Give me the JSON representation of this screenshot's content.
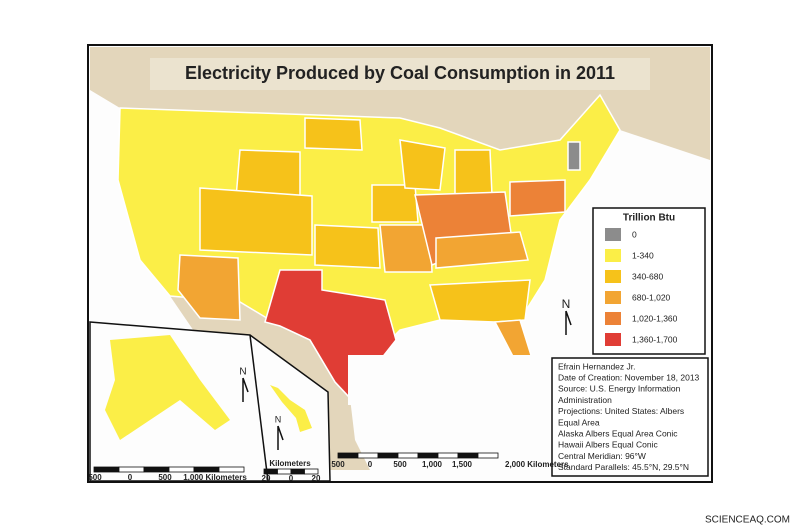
{
  "title": "Electricity Produced by Coal Consumption in 2011",
  "legend": {
    "title": "Trillion Btu",
    "items": [
      {
        "label": "0",
        "color": "#8c8c8c"
      },
      {
        "label": "1-340",
        "color": "#fbee47"
      },
      {
        "label": "340-680",
        "color": "#f6c21a"
      },
      {
        "label": "680-1,020",
        "color": "#f2a533"
      },
      {
        "label": "1,020-1,360",
        "color": "#ec8237"
      },
      {
        "label": "1,360-1,700",
        "color": "#e03d35"
      }
    ]
  },
  "credits": [
    "Efrain Hernandez Jr.",
    "Date of Creation: November 18, 2013",
    "Source: U.S. Energy Information",
    "Administration",
    "Projections: United States: Albers",
    "Equal Area",
    "Alaska Albers Equal Area Conic",
    "Hawaii Albers Equal Conic",
    "Central Meridian: 96°W",
    "Standard Parallels: 45.5°N, 29.5°N"
  ],
  "north": "N",
  "scale_main": [
    "500",
    "0",
    "500",
    "1,000",
    "1,500",
    "2,000 Kilometers"
  ],
  "scale_alaska": [
    "500",
    "0",
    "500",
    "1,000 Kilometers"
  ],
  "scale_hawaii": {
    "title": "Kilometers",
    "labels": [
      "20",
      "0",
      "20"
    ]
  },
  "watermark": "SCIENCEAQ.COM"
}
